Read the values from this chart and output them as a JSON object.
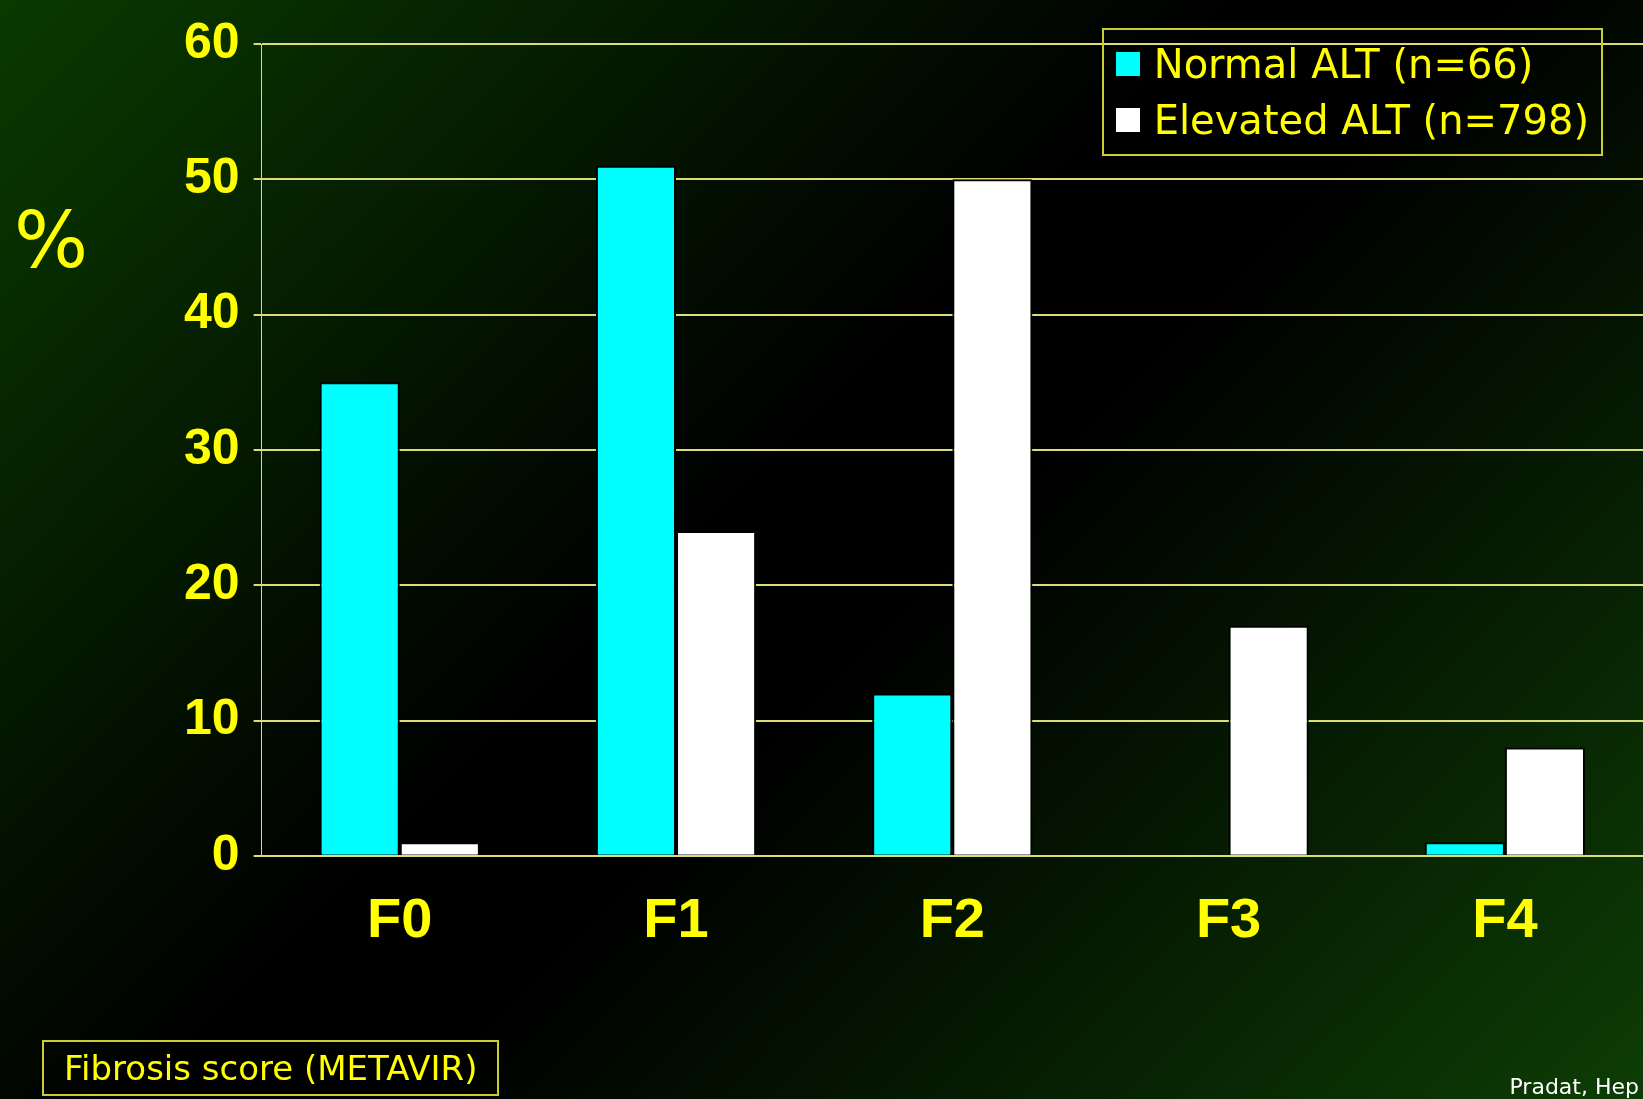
{
  "chart_data": {
    "type": "bar",
    "ylabel": "%",
    "xlabel": "Fibrosis score (METAVIR)",
    "categories": [
      "F0",
      "F1",
      "F2",
      "F3",
      "F4"
    ],
    "series": [
      {
        "name": "Normal ALT (n=66)",
        "color": "#00ffff",
        "values": [
          35,
          51,
          12,
          0,
          1
        ]
      },
      {
        "name": "Elevated ALT (n=798)",
        "color": "#ffffff",
        "values": [
          1,
          24,
          50,
          17,
          8
        ]
      }
    ],
    "ylim": [
      0,
      60
    ],
    "yticks": [
      0,
      10,
      20,
      30,
      40,
      50,
      60
    ],
    "grid": "y",
    "legend": "top right",
    "annotations": [
      "Pradat, Hep"
    ]
  }
}
